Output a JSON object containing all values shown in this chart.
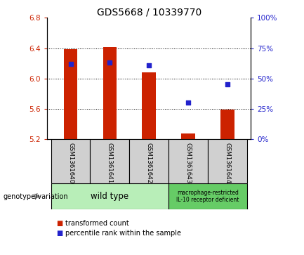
{
  "title": "GDS5668 / 10339770",
  "samples": [
    "GSM1361640",
    "GSM1361641",
    "GSM1361642",
    "GSM1361643",
    "GSM1361644"
  ],
  "transformed_count": [
    6.39,
    6.41,
    6.08,
    5.27,
    5.59
  ],
  "percentile_rank": [
    62,
    63,
    61,
    30,
    45
  ],
  "ylim_left": [
    5.2,
    6.8
  ],
  "ylim_right": [
    0,
    100
  ],
  "yticks_left": [
    5.2,
    5.6,
    6.0,
    6.4,
    6.8
  ],
  "yticks_right": [
    0,
    25,
    50,
    75,
    100
  ],
  "bar_color": "#cc2200",
  "scatter_color": "#2222cc",
  "bar_bottom": 5.2,
  "groups": [
    {
      "label": "wild type",
      "samples_range": [
        0,
        2
      ],
      "color": "#b8eeb8"
    },
    {
      "label": "macrophage-restricted\nIL-10 receptor deficient",
      "samples_range": [
        3,
        4
      ],
      "color": "#66cc66"
    }
  ],
  "genotype_label": "genotype/variation",
  "legend_items": [
    {
      "label": "transformed count",
      "color": "#cc2200"
    },
    {
      "label": "percentile rank within the sample",
      "color": "#2222cc"
    }
  ],
  "tick_color_left": "#cc2200",
  "tick_color_right": "#2222cc",
  "bg_color": "#ffffff",
  "plot_bg": "#ffffff",
  "x_cell_color": "#d0d0d0",
  "title_fontsize": 10,
  "tick_fontsize": 7.5,
  "bar_width": 0.35
}
